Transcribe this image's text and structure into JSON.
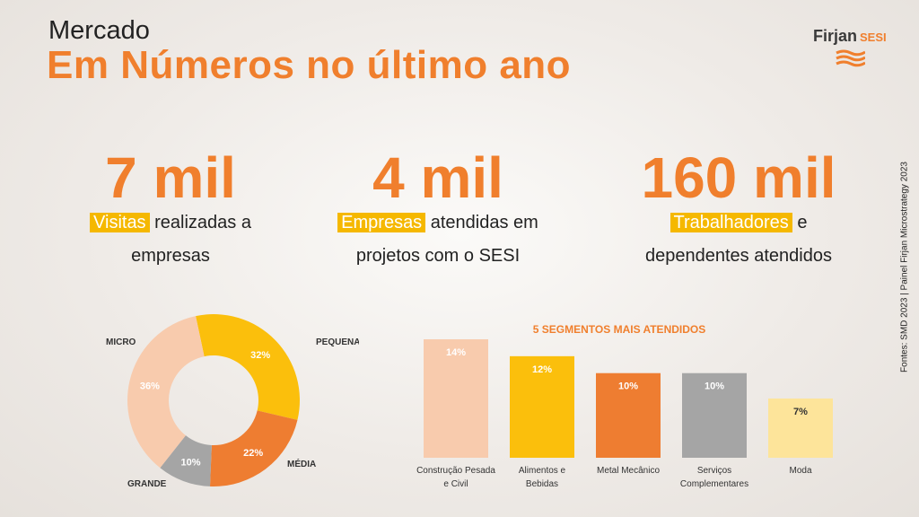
{
  "header": {
    "title_line1": "Mercado",
    "title_line2": "Em Números no último ano"
  },
  "logo": {
    "brand": "Firjan",
    "sub": "SESI"
  },
  "stats": [
    {
      "value": "7 mil",
      "highlight": "Visitas",
      "rest": "realizadas a",
      "line2": "empresas"
    },
    {
      "value": "4 mil",
      "highlight": "Empresas",
      "rest": "atendidas em",
      "line2": "projetos com o SESI"
    },
    {
      "value": "160 mil",
      "highlight": "Trabalhadores",
      "rest": "e",
      "line2": "dependentes atendidos"
    }
  ],
  "source": "Fontes: SMD 2023 | Painel Firjan Microstrategy 2023",
  "colors": {
    "accent": "#f07f2d",
    "highlight": "#f5b800"
  },
  "chart_data": [
    {
      "type": "pie",
      "donut": true,
      "categories": [
        "PEQUENA",
        "MÉDIA",
        "GRANDE",
        "MICRO"
      ],
      "values": [
        32,
        22,
        10,
        36
      ],
      "labels": [
        "32%",
        "22%",
        "10%",
        "36%"
      ],
      "colors": [
        "#fbbf0c",
        "#ee7d31",
        "#a5a5a5",
        "#f8cbad"
      ]
    },
    {
      "type": "bar",
      "title": "5 SEGMENTOS MAIS ATENDIDOS",
      "categories": [
        [
          "Construção Pesada",
          "e Civil"
        ],
        [
          "Alimentos e",
          "Bebidas"
        ],
        [
          "Metal Mecânico"
        ],
        [
          "Serviços",
          "Complementares"
        ],
        [
          "Moda"
        ]
      ],
      "values": [
        14,
        12,
        10,
        10,
        7
      ],
      "labels": [
        "14%",
        "12%",
        "10%",
        "10%",
        "7%"
      ],
      "colors": [
        "#f8cbad",
        "#fbbf0c",
        "#ee7d31",
        "#a5a5a5",
        "#fde49a"
      ],
      "ylim": [
        0,
        14
      ]
    }
  ]
}
